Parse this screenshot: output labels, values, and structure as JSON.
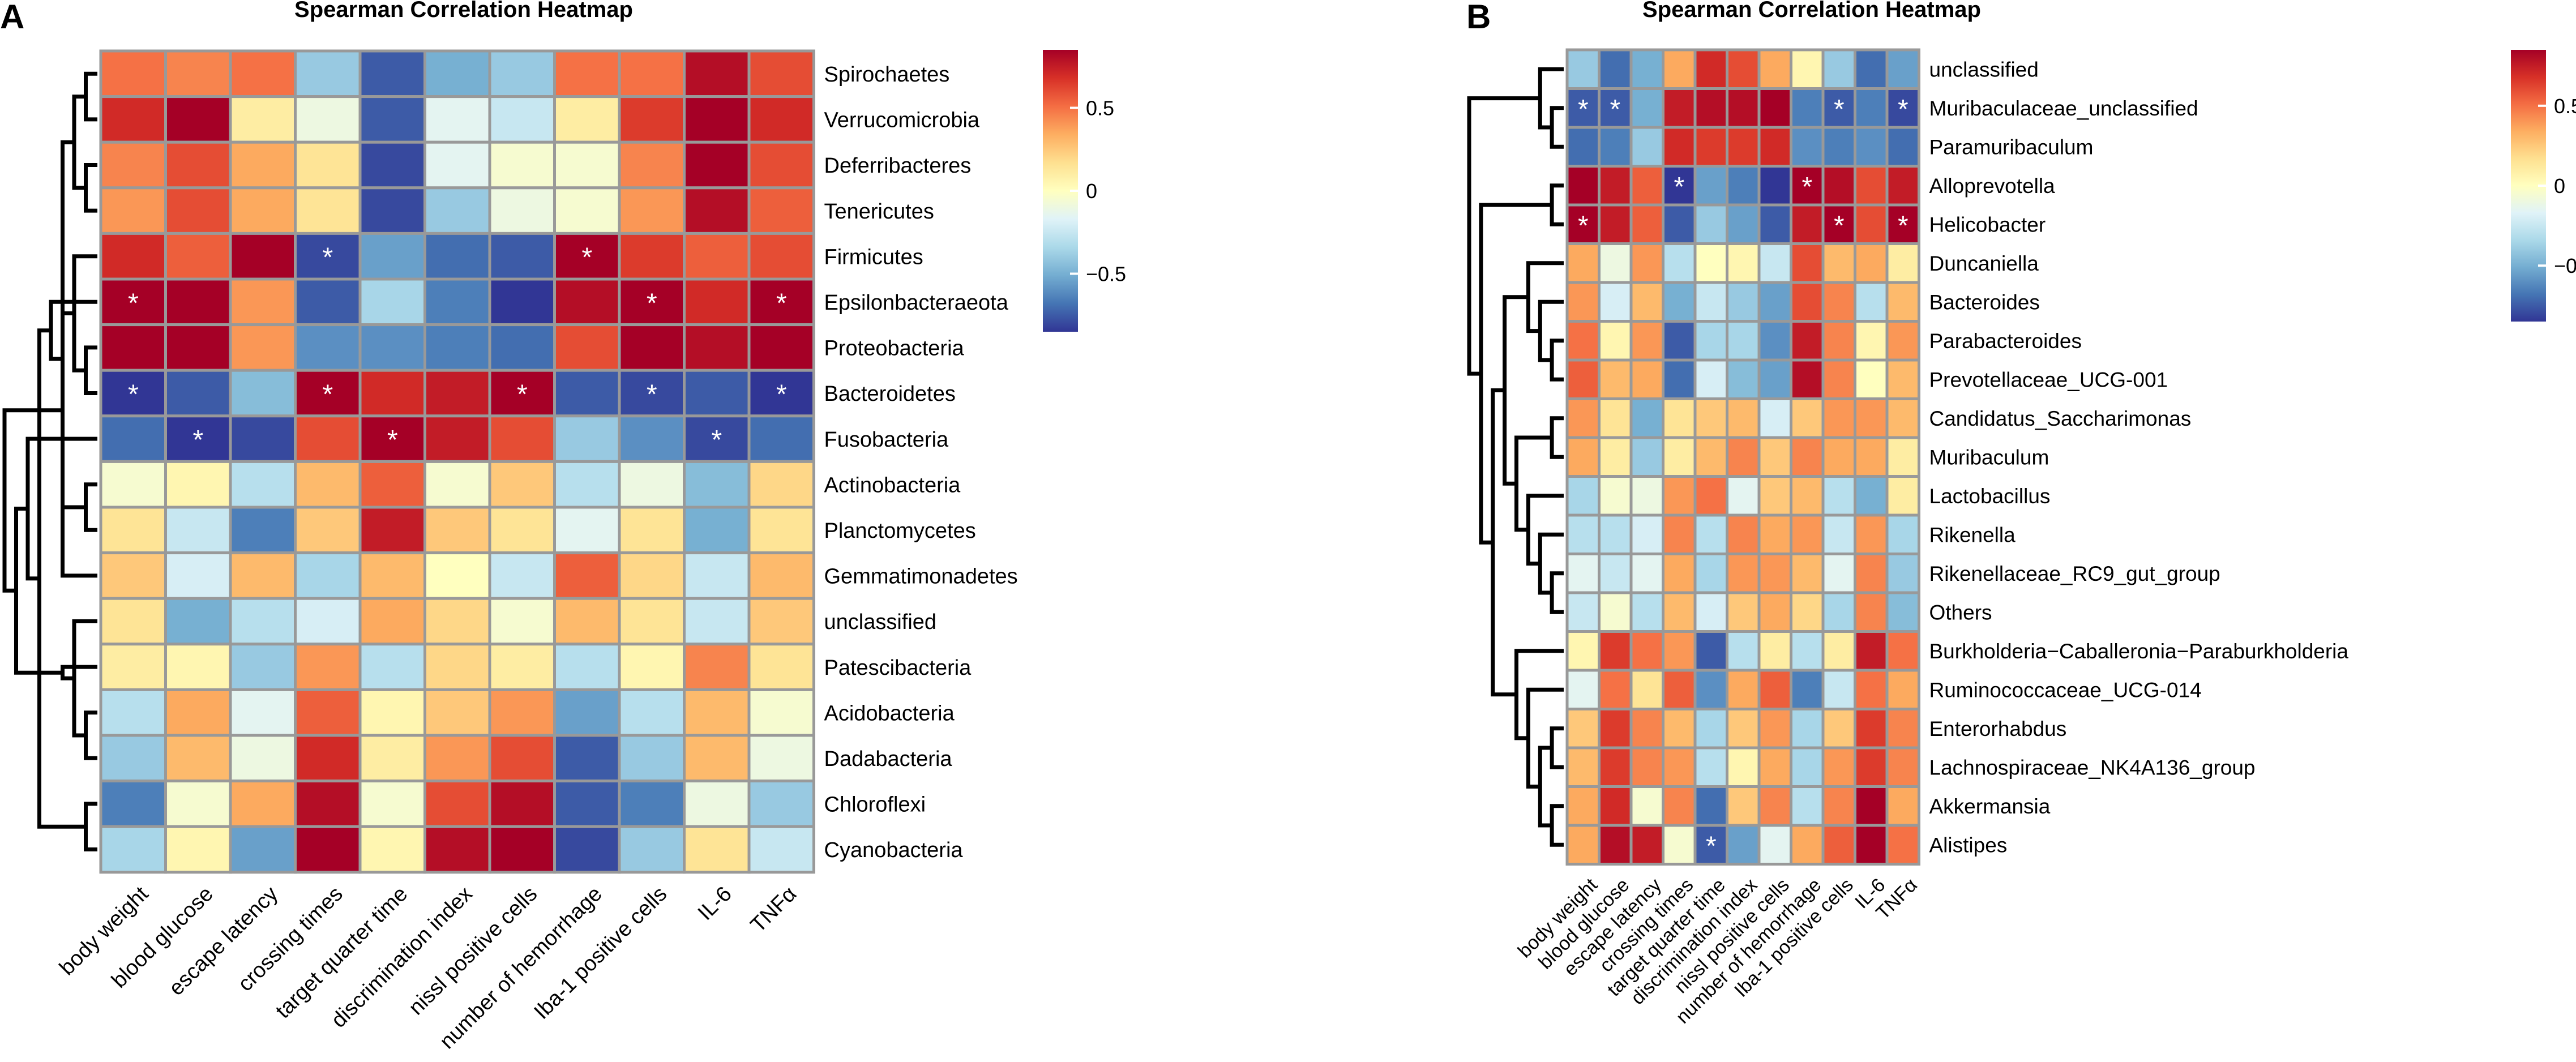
{
  "panels": [
    {
      "label": "A",
      "chart_data": {
        "type": "heatmap",
        "title": "Spearman Correlation Heatmap",
        "columns": [
          "body weight",
          "blood glucose",
          "escape latency",
          "crossing times",
          "target quarter time",
          "discrimination index",
          "nissl positive cells",
          "number of hemorrhage",
          "Iba-1 positive cells",
          "IL-6",
          "TNFα"
        ],
        "rows": [
          "Spirochaetes",
          "Verrucomicrobia",
          "Deferribacteres",
          "Tenericutes",
          "Firmicutes",
          "Epsilonbacteraeota",
          "Proteobacteria",
          "Bacteroidetes",
          "Fusobacteria",
          "Actinobacteria",
          "Planctomycetes",
          "Gemmatimonadetes",
          "unclassified",
          "Patescibacteria",
          "Acidobacteria",
          "Dadabacteria",
          "Chloroflexi",
          "Cyanobacteria"
        ],
        "values": [
          [
            0.5,
            0.45,
            0.5,
            -0.4,
            -0.75,
            -0.5,
            -0.4,
            0.5,
            0.5,
            0.8,
            0.6
          ],
          [
            0.7,
            0.85,
            0.1,
            -0.1,
            -0.75,
            -0.15,
            -0.25,
            0.1,
            0.65,
            0.9,
            0.7
          ],
          [
            0.45,
            0.6,
            0.35,
            0.15,
            -0.8,
            -0.15,
            -0.05,
            -0.05,
            0.45,
            0.85,
            0.6
          ],
          [
            0.4,
            0.6,
            0.35,
            0.15,
            -0.8,
            -0.4,
            -0.1,
            -0.05,
            0.4,
            0.8,
            0.55
          ],
          [
            0.7,
            0.55,
            0.85,
            -0.8,
            -0.55,
            -0.7,
            -0.75,
            0.9,
            0.65,
            0.55,
            0.6
          ],
          [
            0.9,
            0.85,
            0.4,
            -0.75,
            -0.35,
            -0.65,
            -0.85,
            0.8,
            0.85,
            0.7,
            0.9
          ],
          [
            0.85,
            0.85,
            0.4,
            -0.6,
            -0.6,
            -0.65,
            -0.7,
            0.6,
            0.85,
            0.8,
            0.85
          ],
          [
            -0.85,
            -0.75,
            -0.45,
            0.85,
            0.7,
            0.75,
            0.85,
            -0.75,
            -0.8,
            -0.75,
            -0.85
          ],
          [
            -0.7,
            -0.85,
            -0.8,
            0.6,
            0.85,
            0.75,
            0.6,
            -0.4,
            -0.6,
            -0.8,
            -0.7
          ],
          [
            -0.05,
            0.05,
            -0.3,
            0.3,
            0.55,
            -0.05,
            0.25,
            -0.3,
            -0.1,
            -0.45,
            0.2
          ],
          [
            0.15,
            -0.25,
            -0.65,
            0.25,
            0.75,
            0.25,
            0.15,
            -0.15,
            0.15,
            -0.5,
            0.15
          ],
          [
            0.25,
            -0.2,
            0.3,
            -0.35,
            0.3,
            0.0,
            -0.25,
            0.55,
            0.2,
            -0.25,
            0.3
          ],
          [
            0.15,
            -0.5,
            -0.3,
            -0.2,
            0.35,
            0.2,
            -0.05,
            0.3,
            0.15,
            -0.25,
            0.25
          ],
          [
            0.1,
            0.05,
            -0.4,
            0.4,
            -0.3,
            0.2,
            0.1,
            -0.3,
            0.05,
            0.45,
            0.15
          ],
          [
            -0.3,
            0.35,
            -0.15,
            0.55,
            0.05,
            0.25,
            0.4,
            -0.55,
            -0.3,
            0.3,
            -0.05
          ],
          [
            -0.4,
            0.3,
            -0.1,
            0.7,
            0.1,
            0.4,
            0.6,
            -0.75,
            -0.4,
            0.3,
            -0.1
          ],
          [
            -0.65,
            -0.05,
            0.35,
            0.8,
            -0.05,
            0.6,
            0.8,
            -0.75,
            -0.65,
            -0.1,
            -0.4
          ],
          [
            -0.35,
            0.05,
            -0.55,
            0.85,
            0.05,
            0.8,
            0.85,
            -0.8,
            -0.4,
            0.15,
            -0.25
          ]
        ],
        "significance_symbol": "*",
        "significant_cells": [
          [
            4,
            3
          ],
          [
            4,
            7
          ],
          [
            5,
            0
          ],
          [
            5,
            8
          ],
          [
            5,
            10
          ],
          [
            7,
            0
          ],
          [
            7,
            3
          ],
          [
            7,
            6
          ],
          [
            7,
            8
          ],
          [
            7,
            10
          ],
          [
            8,
            1
          ],
          [
            8,
            4
          ],
          [
            8,
            9
          ]
        ],
        "colorbar": {
          "range": [
            -0.85,
            0.85
          ],
          "ticks": [
            0.5,
            0,
            -0.5
          ],
          "tick_labels": [
            "0.5",
            "0",
            "−0.5"
          ]
        },
        "dendrogram": {
          "side": "left",
          "merges": [
            [
              0,
              1
            ],
            [
              2,
              3
            ],
            [
              14,
              15
            ],
            [
              16,
              17
            ],
            [
              18,
              19
            ],
            [
              12,
              20
            ],
            [
              11,
              22
            ],
            [
              6,
              7
            ],
            [
              5,
              24
            ],
            [
              4,
              25
            ],
            [
              21,
              26
            ],
            [
              9,
              10
            ],
            [
              8,
              28
            ],
            [
              13,
              23
            ],
            [
              27,
              29
            ],
            [
              31,
              30
            ],
            [
              32,
              33
            ]
          ]
        },
        "colors": {
          "low": "#313695",
          "mid": "#ffffbf",
          "high": "#a50026",
          "cell_border": "#999999"
        }
      }
    },
    {
      "label": "B",
      "chart_data": {
        "type": "heatmap",
        "title": "Spearman Correlation Heatmap",
        "columns": [
          "body weight",
          "blood glucose",
          "escape latency",
          "crossing times",
          "target quarter time",
          "discrimination index",
          "nissl positive cells",
          "number of hemorrhage",
          "Iba-1 positive cells",
          "IL-6",
          "TNFα"
        ],
        "rows": [
          "unclassified",
          "Muribaculaceae_unclassified",
          "Paramuribaculum",
          "Alloprevotella",
          "Helicobacter",
          "Duncaniella",
          "Bacteroides",
          "Parabacteroides",
          "Prevotellaceae_UCG-001",
          "Candidatus_Saccharimonas",
          "Muribaculum",
          "Lactobacillus",
          "Rikenella",
          "Rikenellaceae_RC9_gut_group",
          "Others",
          "Burkholderia−Caballeronia−Paraburkholderia",
          "Ruminococcaceae_UCG-014",
          "Enterorhabdus",
          "Lachnospiraceae_NK4A136_group",
          "Akkermansia",
          "Alistipes"
        ],
        "values": [
          [
            -0.4,
            -0.7,
            -0.5,
            0.35,
            0.7,
            0.6,
            0.35,
            0.05,
            -0.4,
            -0.7,
            -0.55
          ],
          [
            -0.75,
            -0.75,
            -0.5,
            0.75,
            0.8,
            0.8,
            0.85,
            -0.65,
            -0.75,
            -0.65,
            -0.8
          ],
          [
            -0.7,
            -0.65,
            -0.4,
            0.7,
            0.65,
            0.65,
            0.7,
            -0.6,
            -0.65,
            -0.6,
            -0.7
          ],
          [
            0.85,
            0.75,
            0.55,
            -0.85,
            -0.55,
            -0.65,
            -0.85,
            0.85,
            0.8,
            0.6,
            0.75
          ],
          [
            0.85,
            0.75,
            0.55,
            -0.75,
            -0.4,
            -0.55,
            -0.75,
            0.75,
            0.85,
            0.6,
            0.9
          ],
          [
            0.35,
            -0.1,
            0.4,
            -0.3,
            0.0,
            0.05,
            -0.25,
            0.6,
            0.3,
            0.35,
            0.1
          ],
          [
            0.4,
            -0.2,
            0.3,
            -0.5,
            -0.25,
            -0.4,
            -0.55,
            0.6,
            0.45,
            -0.3,
            0.3
          ],
          [
            0.5,
            0.05,
            0.4,
            -0.75,
            -0.35,
            -0.35,
            -0.6,
            0.75,
            0.45,
            0.05,
            0.4
          ],
          [
            0.55,
            0.3,
            0.35,
            -0.7,
            -0.2,
            -0.45,
            -0.55,
            0.8,
            0.45,
            0.0,
            0.3
          ],
          [
            0.4,
            0.15,
            -0.5,
            0.15,
            0.25,
            0.3,
            -0.2,
            0.25,
            0.4,
            0.4,
            0.3
          ],
          [
            0.35,
            0.1,
            -0.4,
            0.1,
            0.3,
            0.45,
            0.25,
            0.45,
            0.35,
            0.35,
            0.1
          ],
          [
            -0.35,
            -0.05,
            -0.1,
            0.4,
            0.5,
            -0.15,
            0.25,
            0.3,
            -0.3,
            -0.5,
            0.1
          ],
          [
            -0.3,
            -0.3,
            -0.2,
            0.45,
            -0.3,
            0.45,
            0.35,
            0.4,
            -0.25,
            0.4,
            -0.35
          ],
          [
            -0.15,
            -0.25,
            -0.15,
            0.35,
            -0.35,
            0.4,
            0.4,
            0.3,
            -0.15,
            0.45,
            -0.4
          ],
          [
            -0.25,
            -0.05,
            -0.3,
            0.3,
            -0.2,
            0.25,
            0.35,
            0.2,
            -0.35,
            0.45,
            -0.45
          ],
          [
            0.05,
            0.65,
            0.5,
            0.4,
            -0.75,
            -0.3,
            0.1,
            -0.3,
            0.1,
            0.75,
            0.5
          ],
          [
            -0.15,
            0.5,
            0.15,
            0.55,
            -0.6,
            0.35,
            0.55,
            -0.65,
            -0.25,
            0.5,
            0.35
          ],
          [
            0.25,
            0.65,
            0.45,
            0.3,
            -0.35,
            0.25,
            0.4,
            -0.35,
            0.25,
            0.65,
            0.45
          ],
          [
            0.3,
            0.65,
            0.45,
            0.4,
            -0.3,
            0.05,
            0.35,
            -0.35,
            0.4,
            0.65,
            0.45
          ],
          [
            0.35,
            0.7,
            -0.05,
            0.45,
            -0.7,
            0.25,
            0.45,
            -0.3,
            0.45,
            0.85,
            0.35
          ],
          [
            0.35,
            0.8,
            0.75,
            -0.05,
            -0.75,
            -0.55,
            -0.15,
            0.35,
            0.55,
            0.9,
            0.5
          ]
        ],
        "significance_symbol": "*",
        "significant_cells": [
          [
            1,
            0
          ],
          [
            1,
            1
          ],
          [
            1,
            8
          ],
          [
            1,
            10
          ],
          [
            3,
            3
          ],
          [
            3,
            7
          ],
          [
            4,
            0
          ],
          [
            4,
            8
          ],
          [
            4,
            10
          ],
          [
            20,
            4
          ]
        ],
        "colorbar": {
          "range": [
            -0.85,
            0.85
          ],
          "ticks": [
            0.5,
            0,
            -0.5
          ],
          "tick_labels": [
            "0.5",
            "0",
            "−0.5"
          ]
        },
        "dendrogram": {
          "side": "left",
          "merges": [
            [
              1,
              2
            ],
            [
              0,
              21
            ],
            [
              3,
              4
            ],
            [
              7,
              8
            ],
            [
              6,
              24
            ],
            [
              5,
              25
            ],
            [
              9,
              10
            ],
            [
              13,
              14
            ],
            [
              12,
              28
            ],
            [
              11,
              29
            ],
            [
              27,
              30
            ],
            [
              26,
              31
            ],
            [
              17,
              18
            ],
            [
              19,
              20
            ],
            [
              33,
              34
            ],
            [
              16,
              35
            ],
            [
              15,
              36
            ],
            [
              32,
              37
            ],
            [
              23,
              38
            ],
            [
              22,
              39
            ]
          ]
        },
        "colors": {
          "low": "#313695",
          "mid": "#ffffbf",
          "high": "#a50026",
          "cell_border": "#999999"
        }
      }
    }
  ]
}
